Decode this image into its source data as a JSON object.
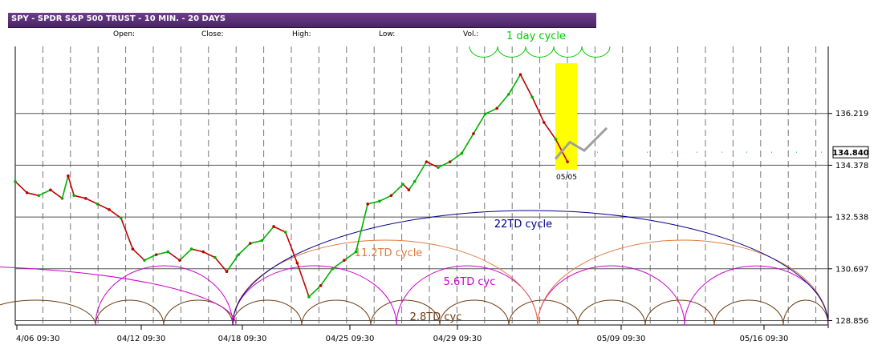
{
  "header": {
    "title": "SPY - SPDR S&P 500 TRUST - 10 MIN. - 20 DAYS",
    "open_label": "Open:",
    "close_label": "Close:",
    "high_label": "High:",
    "low_label": "Low:",
    "vol_label": "Vol.:"
  },
  "colors": {
    "titlebar": "#5a2d78",
    "up_candle": "#00b000",
    "down_candle": "#c00000",
    "highlight": "#ffff00",
    "projection": "#a0a0a0",
    "cycle_1day": "#00cc00",
    "cycle_22td": "#00008b",
    "cycle_11_2td": "#e07a40",
    "cycle_5_6td": "#cc00cc",
    "cycle_2_8td": "#6b3a10"
  },
  "chart_data": {
    "type": "line",
    "ylim": [
      128.7,
      138.6
    ],
    "y_ticks": [
      136.219,
      134.378,
      132.538,
      130.697,
      128.856
    ],
    "y_tick_labels": [
      "136.219",
      "134.378",
      "132.538",
      "130.697",
      "128.856"
    ],
    "current_price": 134.84,
    "current_price_label": "134.840",
    "x_tick_labels": [
      "4/06 09:30",
      "04/12 09:30",
      "04/18 09:30",
      "04/25 09:30",
      "04/29 09:30",
      "05/09 09:30",
      "05/16 09:30"
    ],
    "highlight_label": "05/05",
    "series": [
      {
        "x": [
          0,
          2,
          4,
          6,
          8,
          9,
          10,
          12,
          14,
          16,
          18,
          20,
          22,
          24,
          26,
          28,
          30,
          32,
          34,
          36,
          38,
          40,
          42,
          44,
          46,
          48,
          50,
          52,
          54,
          56,
          58,
          60,
          62,
          64,
          66,
          67,
          68,
          70,
          72,
          74,
          76,
          78,
          80,
          82,
          84,
          86,
          88,
          90,
          92,
          94
        ],
        "values": [
          133.8,
          133.4,
          133.3,
          133.5,
          133.2,
          134.0,
          133.3,
          133.2,
          133.0,
          132.8,
          132.5,
          131.4,
          131.0,
          131.2,
          131.3,
          131.0,
          131.4,
          131.3,
          131.1,
          130.6,
          131.2,
          131.6,
          131.7,
          132.2,
          132.0,
          130.9,
          129.7,
          130.1,
          130.7,
          131.0,
          131.3,
          133.0,
          133.1,
          133.3,
          133.7,
          133.5,
          133.8,
          134.5,
          134.3,
          134.5,
          134.8,
          135.5,
          136.2,
          136.4,
          136.9,
          137.6,
          136.8,
          135.9,
          135.3,
          134.5
        ]
      }
    ],
    "projection_values": [
      134.6,
      135.2,
      134.9,
      135.7
    ],
    "cycles": [
      {
        "name": "1 day cycle",
        "period_days": 1
      },
      {
        "name": "2.8TD cyc",
        "period_days": 2.8
      },
      {
        "name": "5.6TD cyc",
        "period_days": 5.6
      },
      {
        "name": "11.2TD cycle",
        "period_days": 11.2
      },
      {
        "name": "22TD cycle",
        "period_days": 22
      }
    ]
  }
}
